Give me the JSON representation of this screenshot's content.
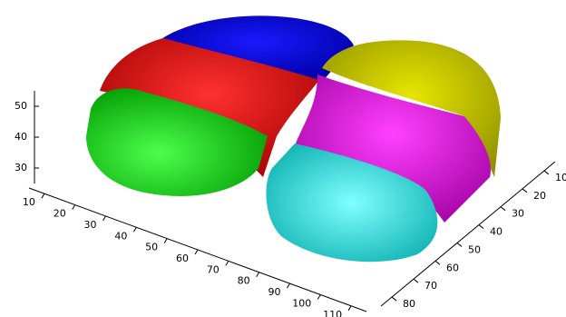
{
  "chart_data": {
    "type": "isosurface3d",
    "xlim": [
      5,
      115
    ],
    "xticks": [
      10,
      20,
      30,
      40,
      50,
      60,
      70,
      80,
      90,
      100,
      110
    ],
    "ylim": [
      5,
      85
    ],
    "yticks": [
      10,
      20,
      30,
      40,
      50,
      60,
      70,
      80
    ],
    "zlim": [
      25,
      55
    ],
    "zticks": [
      30,
      40,
      50
    ]
  }
}
